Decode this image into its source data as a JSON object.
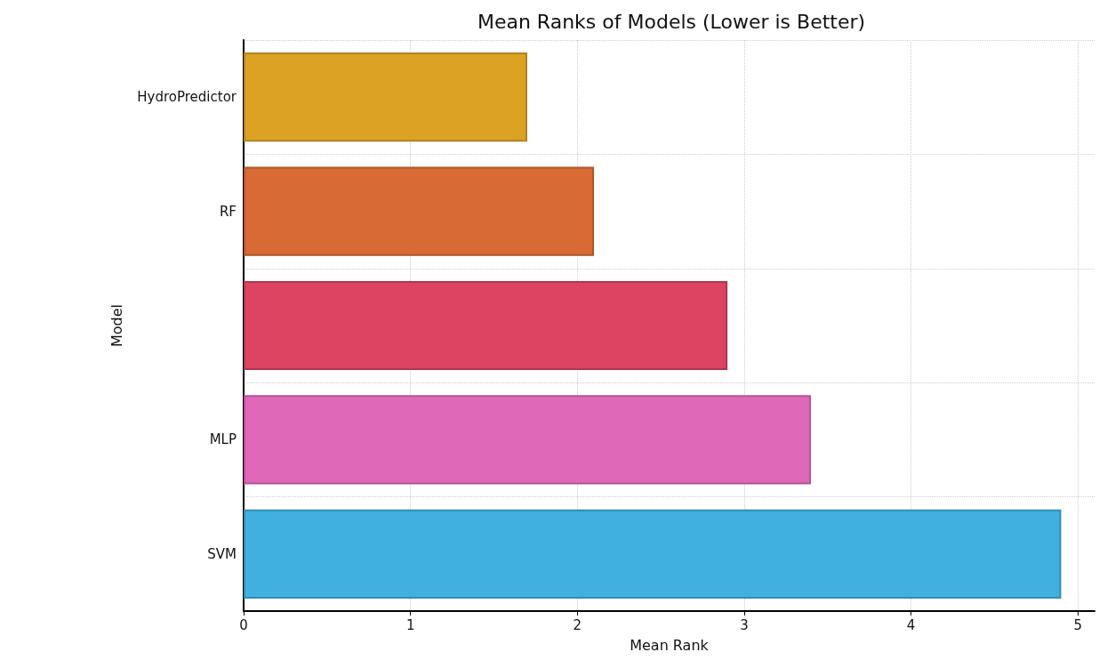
{
  "chart_data": {
    "type": "bar",
    "orientation": "horizontal",
    "title": "Mean Ranks of Models (Lower is Better)",
    "xlabel": "Mean Rank",
    "ylabel": "Model",
    "categories": [
      "HydroPredictor",
      "RF",
      null,
      "MLP",
      "SVM"
    ],
    "values": [
      1.7,
      2.1,
      2.9,
      3.4,
      4.9
    ],
    "colors": [
      "#dca224",
      "#d86a35",
      "#dc4462",
      "#e068b8",
      "#40b0e0"
    ],
    "xlim": [
      0,
      5.1
    ],
    "xticks": [
      0,
      1,
      2,
      3,
      4,
      5
    ],
    "grid": true
  }
}
